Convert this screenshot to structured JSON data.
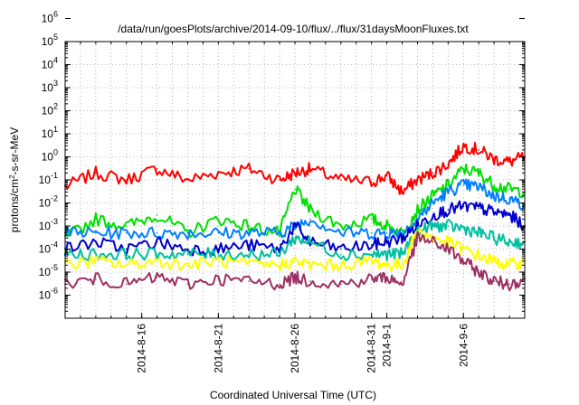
{
  "chart_data": {
    "type": "line",
    "title": "/data/run/goesPlots/archive/2014-09-10/flux/../flux/31daysMoonFluxes.txt",
    "xlabel": "Coordinated Universal Time (UTC)",
    "ylabel": "protons/cm2-s-sr-MeV",
    "y_scale": "log",
    "ylim": [
      "1e-6",
      "1e6"
    ],
    "xlim": [
      "2014-08-11",
      "2014-09-10"
    ],
    "grid": true,
    "legend": "none",
    "y_tick_labels": [
      {
        "base": "10",
        "exp": "-6"
      },
      {
        "base": "10",
        "exp": "-5"
      },
      {
        "base": "10",
        "exp": "-4"
      },
      {
        "base": "10",
        "exp": "-3"
      },
      {
        "base": "10",
        "exp": "-2"
      },
      {
        "base": "10",
        "exp": "-1"
      },
      {
        "base": "10",
        "exp": "0"
      },
      {
        "base": "10",
        "exp": "1"
      },
      {
        "base": "10",
        "exp": "2"
      },
      {
        "base": "10",
        "exp": "3"
      },
      {
        "base": "10",
        "exp": "4"
      },
      {
        "base": "10",
        "exp": "5"
      },
      {
        "base": "10",
        "exp": "6"
      }
    ],
    "x_tick_labels": [
      "2014-8-16",
      "2014-8-21",
      "2014-8-26",
      "2014-8-31",
      "2014-9-1",
      "2014-9-6"
    ],
    "x": [
      "2014-08-11",
      "2014-08-13",
      "2014-08-15",
      "2014-08-17",
      "2014-08-19",
      "2014-08-21",
      "2014-08-23",
      "2014-08-25",
      "2014-08-26",
      "2014-08-27",
      "2014-08-29",
      "2014-08-31",
      "2014-09-01",
      "2014-09-02",
      "2014-09-03",
      "2014-09-04",
      "2014-09-05",
      "2014-09-06",
      "2014-09-07",
      "2014-09-08",
      "2014-09-09",
      "2014-09-10"
    ],
    "series": [
      {
        "color": "#ff0000",
        "values": [
          0.5,
          2,
          1,
          3,
          1,
          2,
          3,
          1,
          2,
          3,
          1,
          0.8,
          1.5,
          0.3,
          1,
          2,
          5,
          30,
          20,
          8,
          6,
          10
        ]
      },
      {
        "color": "#00e000",
        "values": [
          0.003,
          0.02,
          0.01,
          0.03,
          0.005,
          0.02,
          0.01,
          0.005,
          0.4,
          0.05,
          0.01,
          0.02,
          0.01,
          0.005,
          0.05,
          0.2,
          0.6,
          3,
          2,
          0.6,
          0.4,
          0.3
        ]
      },
      {
        "color": "#0080ff",
        "values": [
          0.005,
          0.005,
          0.005,
          0.005,
          0.005,
          0.005,
          0.005,
          0.005,
          0.01,
          0.02,
          0.005,
          0.005,
          0.005,
          0.005,
          0.02,
          0.1,
          0.3,
          0.6,
          0.5,
          0.2,
          0.15,
          0.08
        ]
      },
      {
        "color": "#0000cc",
        "values": [
          0.001,
          0.002,
          0.001,
          0.002,
          0.001,
          0.001,
          0.0015,
          0.001,
          0.01,
          0.002,
          0.001,
          0.0015,
          0.002,
          0.003,
          0.01,
          0.03,
          0.05,
          0.07,
          0.06,
          0.04,
          0.03,
          0.01
        ]
      },
      {
        "color": "#00bfa0",
        "values": [
          0.0006,
          0.0006,
          0.0006,
          0.0006,
          0.0006,
          0.0006,
          0.0006,
          0.0006,
          0.003,
          0.002,
          0.0006,
          0.0006,
          0.0006,
          0.0006,
          0.006,
          0.01,
          0.01,
          0.008,
          0.005,
          0.003,
          0.002,
          0.002
        ]
      },
      {
        "color": "#ffff00",
        "values": [
          0.0002,
          0.0003,
          0.0002,
          0.0003,
          0.0002,
          0.0003,
          0.0002,
          0.0002,
          0.0003,
          0.0002,
          0.0002,
          0.0003,
          0.0002,
          0.0002,
          0.006,
          0.003,
          0.002,
          0.001,
          0.0005,
          0.0003,
          0.0002,
          0.0003
        ]
      },
      {
        "color": "#9c3064",
        "values": [
          3e-05,
          5e-05,
          3e-05,
          6e-05,
          3e-05,
          5e-05,
          4e-05,
          3e-05,
          6e-05,
          4e-05,
          3e-05,
          5e-05,
          6e-05,
          3e-05,
          0.003,
          0.002,
          0.001,
          0.0003,
          0.0001,
          4e-05,
          3e-05,
          5e-05
        ]
      }
    ]
  }
}
